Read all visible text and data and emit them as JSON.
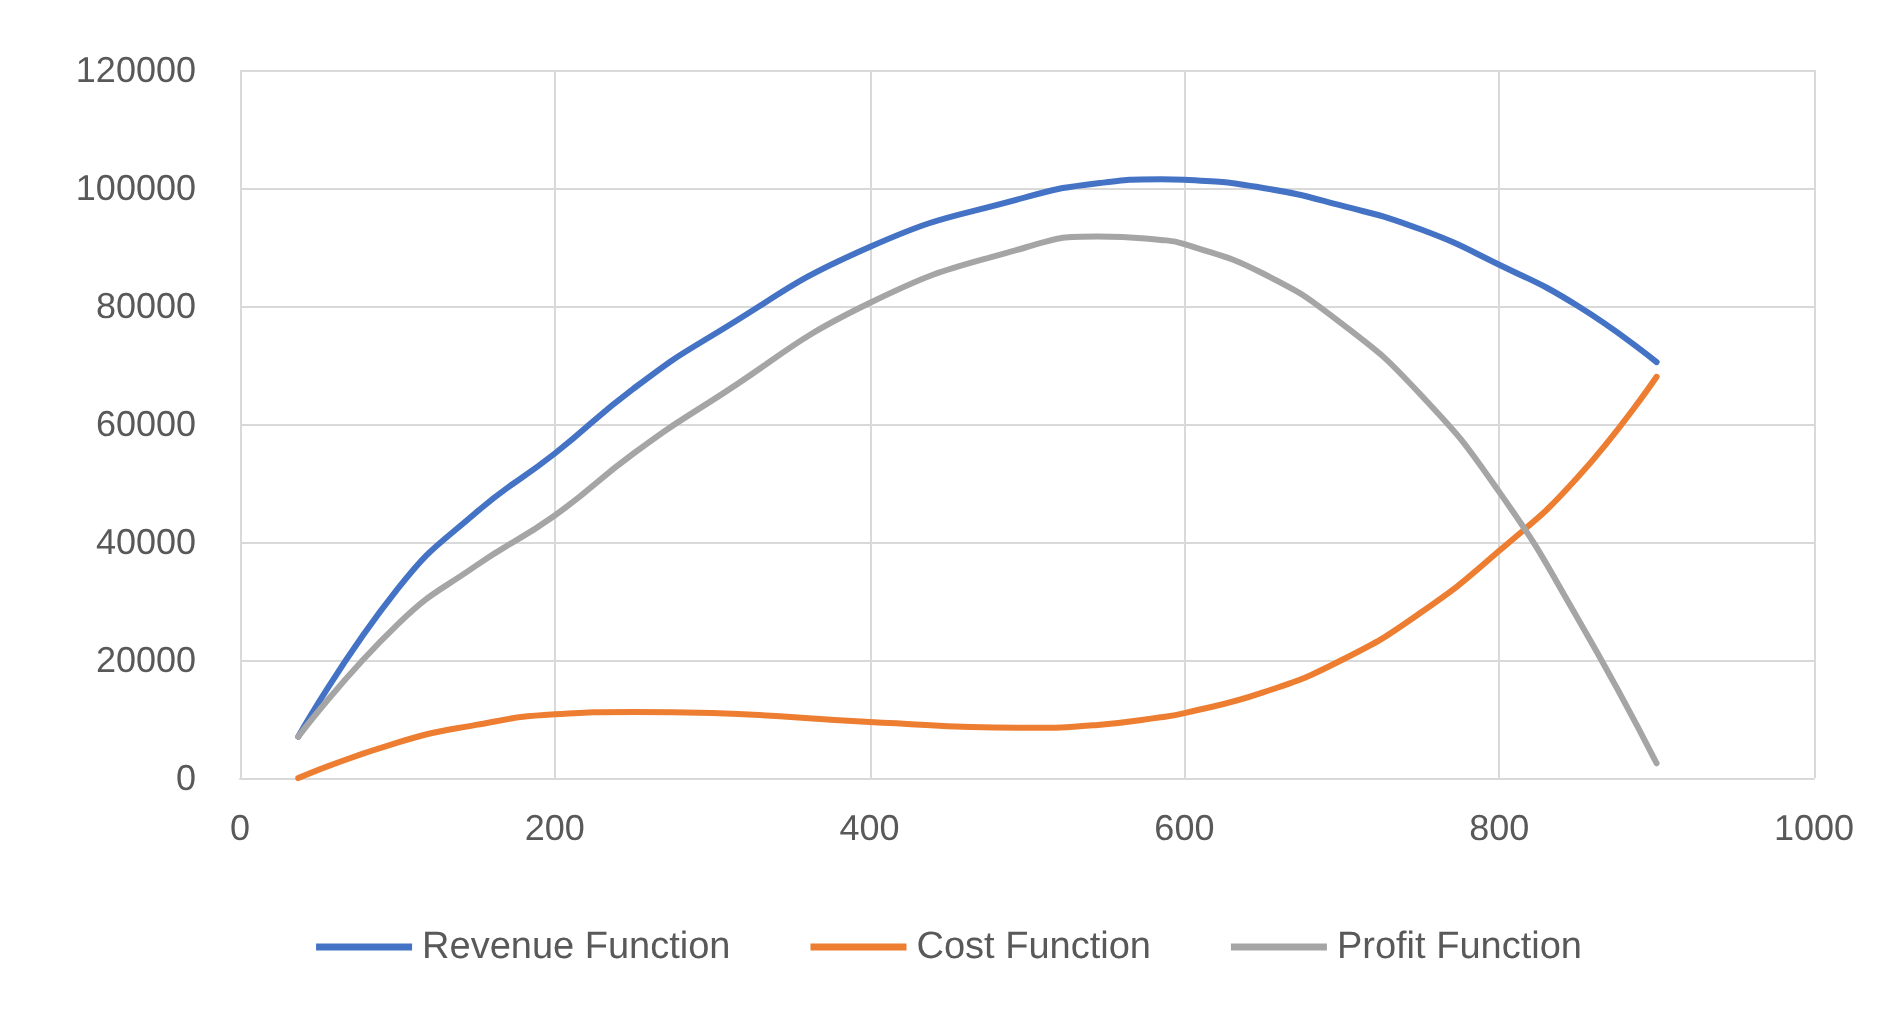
{
  "chart_data": {
    "type": "line",
    "x": [
      37,
      100,
      150,
      200,
      250,
      300,
      400,
      500,
      545,
      585,
      600,
      650,
      700,
      750,
      800,
      850,
      900
    ],
    "series": [
      {
        "name": "Revenue Function",
        "color": "#4472c4",
        "values": [
          7000,
          32000,
          45000,
          55000,
          66000,
          75000,
          90000,
          98500,
          100800,
          101500,
          101400,
          100000,
          97000,
          93000,
          87000,
          80000,
          70500
        ]
      },
      {
        "name": "Cost Function",
        "color": "#ed7d31",
        "values": [
          0,
          6000,
          9000,
          10800,
          11200,
          11000,
          9500,
          8500,
          9000,
          10300,
          11000,
          14500,
          20000,
          28000,
          38500,
          51000,
          68000
        ]
      },
      {
        "name": "Profit Function",
        "color": "#a5a5a5",
        "values": [
          7000,
          26000,
          36000,
          44500,
          55000,
          64000,
          80500,
          90000,
          91800,
          91200,
          90500,
          85500,
          77000,
          65000,
          48500,
          27000,
          2500
        ]
      }
    ],
    "xlim": [
      0,
      1000
    ],
    "xticks": [
      0,
      200,
      400,
      600,
      800,
      1000
    ],
    "ylim": [
      0,
      120000
    ],
    "yticks": [
      0,
      20000,
      40000,
      60000,
      80000,
      100000,
      120000
    ],
    "grid": true,
    "legend": "bottom",
    "marker": "none",
    "line_style": "solid"
  }
}
